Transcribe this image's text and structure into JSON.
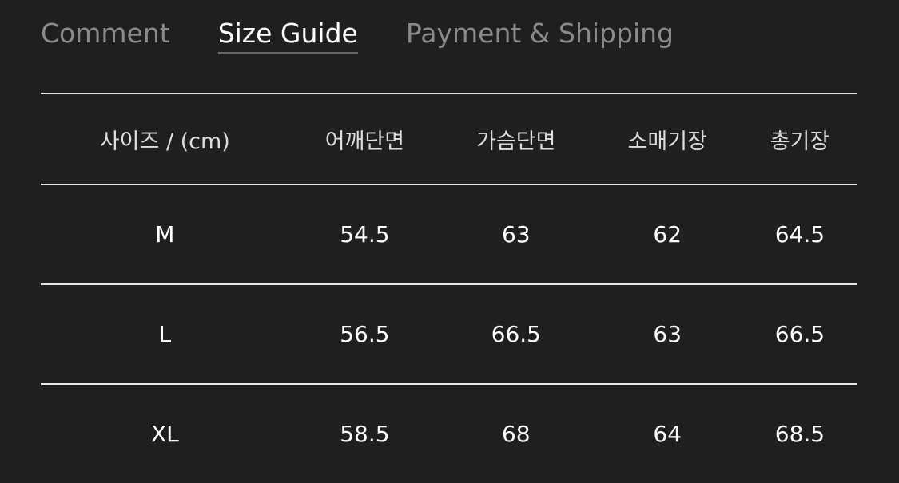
{
  "tabs": [
    {
      "label": "Comment"
    },
    {
      "label": "Size Guide"
    },
    {
      "label": "Payment & Shipping"
    }
  ],
  "table": {
    "headers": [
      "사이즈 / (cm)",
      "어깨단면",
      "가슴단면",
      "소매기장",
      "총기장"
    ],
    "rows": [
      [
        "M",
        "54.5",
        "63",
        "62",
        "64.5"
      ],
      [
        "L",
        "56.5",
        "66.5",
        "63",
        "66.5"
      ],
      [
        "XL",
        "58.5",
        "68",
        "64",
        "68.5"
      ]
    ]
  }
}
